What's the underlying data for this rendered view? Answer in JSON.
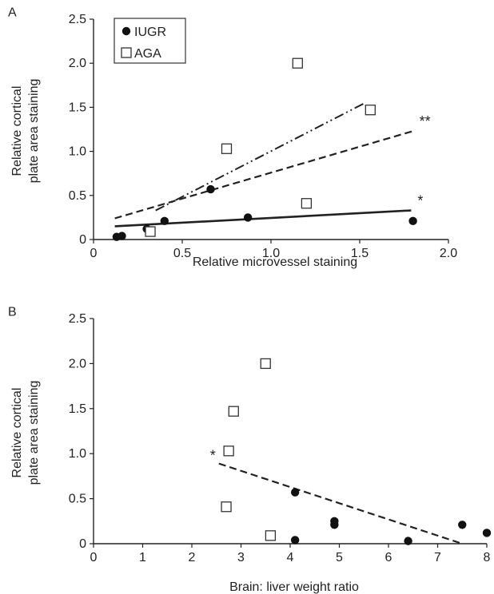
{
  "chart_data": [
    {
      "panel_label": "A",
      "type": "scatter",
      "xlabel": "Relative microvessel staining",
      "ylabel": [
        "Relative cortical",
        "plate area staining"
      ],
      "xlim": [
        0,
        2.0
      ],
      "ylim": [
        0,
        2.5
      ],
      "xticks": [
        "0",
        "0.5",
        "1.0",
        "1.5",
        "2.0"
      ],
      "yticks": [
        "0",
        "0.5",
        "1.0",
        "1.5",
        "2.0",
        "2.5"
      ],
      "legend": {
        "placement": "top-left",
        "entries": [
          "IUGR",
          "AGA"
        ]
      },
      "series": [
        {
          "name": "IUGR",
          "marker": "filled-circle",
          "points": [
            [
              0.13,
              0.03
            ],
            [
              0.16,
              0.04
            ],
            [
              0.3,
              0.12
            ],
            [
              0.4,
              0.21
            ],
            [
              0.66,
              0.57
            ],
            [
              0.87,
              0.25
            ],
            [
              1.8,
              0.21
            ]
          ]
        },
        {
          "name": "AGA",
          "marker": "open-square",
          "points": [
            [
              0.32,
              0.09
            ],
            [
              0.75,
              1.03
            ],
            [
              1.15,
              2.0
            ],
            [
              1.2,
              0.41
            ],
            [
              1.56,
              1.47
            ]
          ]
        }
      ],
      "trendlines": [
        {
          "style": "solid",
          "from": [
            0.12,
            0.15
          ],
          "to": [
            1.79,
            0.33
          ],
          "annotation": "*"
        },
        {
          "style": "dashed",
          "from": [
            0.12,
            0.24
          ],
          "to": [
            1.8,
            1.23
          ],
          "annotation": "**"
        },
        {
          "style": "dash-dot-dot",
          "from": [
            0.35,
            0.33
          ],
          "to": [
            1.53,
            1.55
          ],
          "annotation": ""
        }
      ]
    },
    {
      "panel_label": "B",
      "type": "scatter",
      "xlabel": "Brain: liver weight ratio",
      "ylabel": [
        "Relative cortical",
        "plate area staining"
      ],
      "xlim": [
        0,
        8
      ],
      "ylim": [
        0,
        2.5
      ],
      "xticks": [
        "0",
        "1",
        "2",
        "3",
        "4",
        "5",
        "6",
        "7",
        "8"
      ],
      "yticks": [
        "0",
        "0.5",
        "1.0",
        "1.5",
        "2.0",
        "2.5"
      ],
      "series": [
        {
          "name": "IUGR",
          "marker": "filled-circle",
          "points": [
            [
              4.1,
              0.57
            ],
            [
              4.1,
              0.04
            ],
            [
              4.9,
              0.21
            ],
            [
              4.9,
              0.25
            ],
            [
              6.4,
              0.03
            ],
            [
              7.5,
              0.21
            ],
            [
              8.0,
              0.12
            ]
          ]
        },
        {
          "name": "AGA",
          "marker": "open-square",
          "points": [
            [
              2.7,
              0.41
            ],
            [
              2.75,
              1.03
            ],
            [
              2.85,
              1.47
            ],
            [
              3.5,
              2.0
            ],
            [
              3.6,
              0.09
            ]
          ]
        }
      ],
      "trendlines": [
        {
          "style": "dashed",
          "from": [
            2.55,
            0.89
          ],
          "to": [
            7.5,
            0.0
          ],
          "annotation": "*"
        }
      ]
    }
  ]
}
